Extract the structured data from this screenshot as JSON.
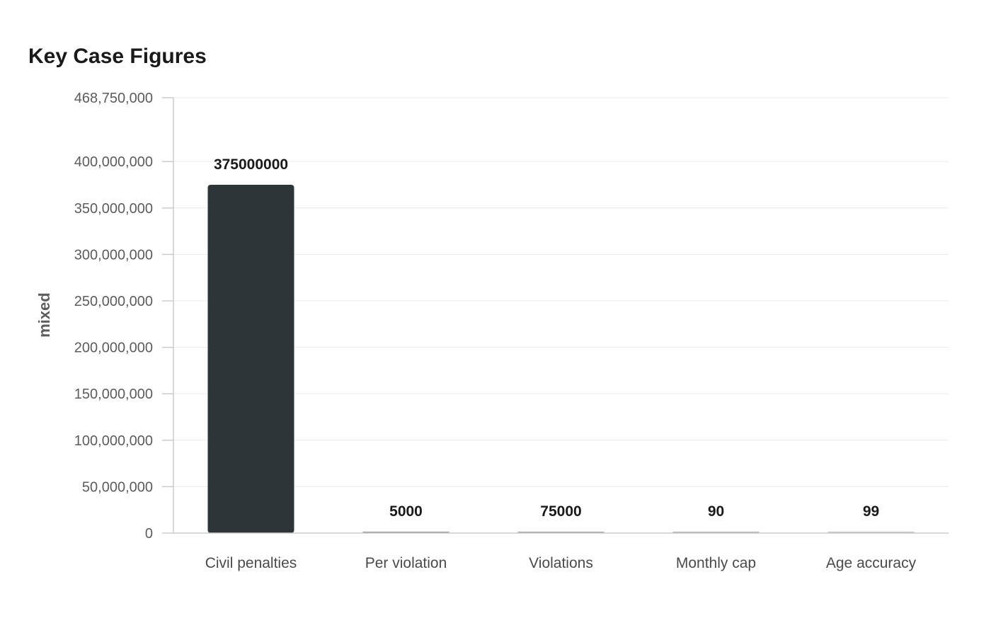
{
  "chart_data": {
    "type": "bar",
    "title": "Key Case Figures",
    "xlabel": "",
    "ylabel": "mixed",
    "categories": [
      "Civil penalties",
      "Per violation",
      "Violations",
      "Monthly cap",
      "Age accuracy"
    ],
    "values": [
      375000000,
      5000,
      75000,
      90,
      99
    ],
    "data_labels": [
      "375000000",
      "5000",
      "75000",
      "90",
      "99"
    ],
    "ylim": [
      0,
      468750000
    ],
    "yticks": [
      0,
      50000000,
      100000000,
      150000000,
      200000000,
      250000000,
      300000000,
      350000000,
      400000000,
      468750000
    ],
    "ytick_labels": [
      "0",
      "50,000,000",
      "100,000,000",
      "150,000,000",
      "200,000,000",
      "250,000,000",
      "300,000,000",
      "350,000,000",
      "400,000,000",
      "468,750,000"
    ],
    "grid": true,
    "legend": "none",
    "colors": [
      "#2e3538",
      "#9a9a9a",
      "#a5a5a5",
      "#b3b3b3",
      "#c4c4c4"
    ]
  }
}
